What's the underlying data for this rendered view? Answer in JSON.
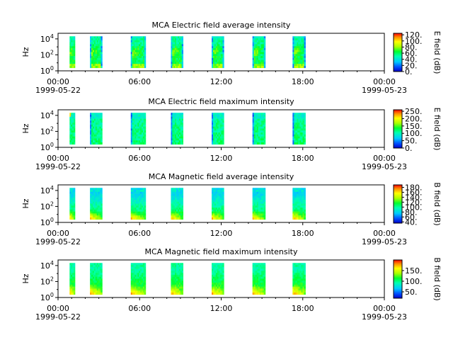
{
  "figure": {
    "background": "#ffffff"
  },
  "chart_data": [
    {
      "type": "heatmap",
      "title": "MCA  Electric field average intensity",
      "ylabel": "Hz",
      "y_scale": "log",
      "ylim": [
        1,
        50000
      ],
      "y_ticks": [
        {
          "base": "10",
          "exp": "0"
        },
        {
          "base": "10",
          "exp": "2"
        },
        {
          "base": "10",
          "exp": "4"
        }
      ],
      "x_ticks": [
        "00:00",
        "06:00",
        "12:00",
        "18:00",
        "00:00"
      ],
      "x_dates": [
        "1999-05-22",
        "1999-05-23"
      ],
      "xlim_hours": [
        0,
        24
      ],
      "colorbar": {
        "label": "E field (dB)",
        "ticks": [
          "0.",
          "20.",
          "40.",
          "60.",
          "80.",
          "100.",
          "120."
        ],
        "range": [
          0,
          125
        ]
      },
      "segments_hours": [
        [
          0.85,
          1.25
        ],
        [
          2.35,
          3.25
        ],
        [
          5.35,
          6.45
        ],
        [
          8.3,
          9.2
        ],
        [
          11.3,
          12.2
        ],
        [
          14.3,
          15.25
        ],
        [
          17.25,
          18.2
        ]
      ],
      "intensity": "avg-e"
    },
    {
      "type": "heatmap",
      "title": "MCA  Electric field maximum intensity",
      "ylabel": "Hz",
      "y_scale": "log",
      "ylim": [
        1,
        50000
      ],
      "y_ticks": [
        {
          "base": "10",
          "exp": "0"
        },
        {
          "base": "10",
          "exp": "2"
        },
        {
          "base": "10",
          "exp": "4"
        }
      ],
      "x_ticks": [
        "00:00",
        "06:00",
        "12:00",
        "18:00",
        "00:00"
      ],
      "x_dates": [
        "1999-05-22",
        "1999-05-23"
      ],
      "xlim_hours": [
        0,
        24
      ],
      "colorbar": {
        "label": "E field (dB)",
        "ticks": [
          "0.",
          "50.",
          "100.",
          "150.",
          "200.",
          "250."
        ],
        "range": [
          0,
          260
        ]
      },
      "segments_hours": [
        [
          0.85,
          1.25
        ],
        [
          2.35,
          3.25
        ],
        [
          5.35,
          6.45
        ],
        [
          8.3,
          9.2
        ],
        [
          11.3,
          12.2
        ],
        [
          14.3,
          15.25
        ],
        [
          17.25,
          18.2
        ]
      ],
      "intensity": "max-e"
    },
    {
      "type": "heatmap",
      "title": "MCA  Magnetic field average intensity",
      "ylabel": "Hz",
      "y_scale": "log",
      "ylim": [
        1,
        50000
      ],
      "y_ticks": [
        {
          "base": "10",
          "exp": "0"
        },
        {
          "base": "10",
          "exp": "2"
        },
        {
          "base": "10",
          "exp": "4"
        }
      ],
      "x_ticks": [
        "00:00",
        "06:00",
        "12:00",
        "18:00",
        "00:00"
      ],
      "x_dates": [
        "1999-05-22",
        "1999-05-23"
      ],
      "xlim_hours": [
        0,
        24
      ],
      "colorbar": {
        "label": "B field (dB)",
        "ticks": [
          "40.",
          "60.",
          "80.",
          "100.",
          "120.",
          "140.",
          "160.",
          "180."
        ],
        "range": [
          35,
          190
        ]
      },
      "segments_hours": [
        [
          0.85,
          1.25
        ],
        [
          2.35,
          3.25
        ],
        [
          5.35,
          6.45
        ],
        [
          8.3,
          9.2
        ],
        [
          11.3,
          12.2
        ],
        [
          14.3,
          15.25
        ],
        [
          17.25,
          18.2
        ]
      ],
      "intensity": "avg-b"
    },
    {
      "type": "heatmap",
      "title": "MCA  Magnetic field maximum intensity",
      "ylabel": "Hz",
      "y_scale": "log",
      "ylim": [
        1,
        50000
      ],
      "y_ticks": [
        {
          "base": "10",
          "exp": "0"
        },
        {
          "base": "10",
          "exp": "2"
        },
        {
          "base": "10",
          "exp": "4"
        }
      ],
      "x_ticks": [
        "00:00",
        "06:00",
        "12:00",
        "18:00",
        "00:00"
      ],
      "x_dates": [
        "1999-05-22",
        "1999-05-23"
      ],
      "xlim_hours": [
        0,
        24
      ],
      "colorbar": {
        "label": "B field (dB)",
        "ticks": [
          "50.",
          "100.",
          "150."
        ],
        "range": [
          20,
          200
        ]
      },
      "segments_hours": [
        [
          0.85,
          1.25
        ],
        [
          2.35,
          3.25
        ],
        [
          5.35,
          6.45
        ],
        [
          8.3,
          9.2
        ],
        [
          11.3,
          12.2
        ],
        [
          14.3,
          15.25
        ],
        [
          17.25,
          18.2
        ]
      ],
      "intensity": "max-b"
    }
  ]
}
